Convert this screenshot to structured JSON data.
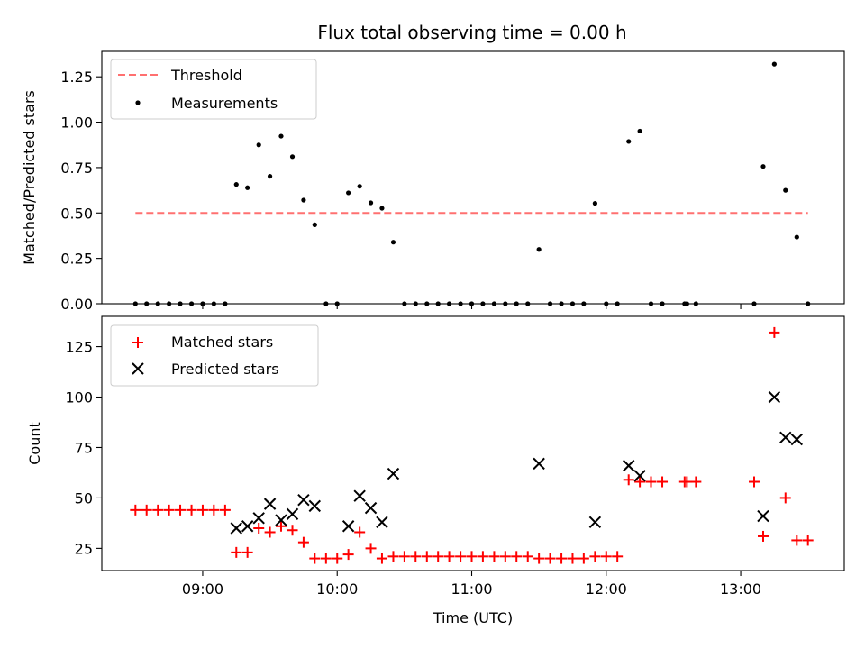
{
  "chart_data": {
    "title": "Flux total observing time = 0.00 h",
    "xlabel": "Time (UTC)",
    "x_ticks": [
      "09:00",
      "10:00",
      "11:00",
      "12:00",
      "13:00"
    ],
    "x_tick_hours": [
      9,
      10,
      11,
      12,
      13
    ],
    "xlim_hours": [
      8.25,
      13.77
    ],
    "top_panel": {
      "type": "scatter",
      "ylabel": "Matched/Predicted stars",
      "ylim": [
        0,
        1.39
      ],
      "y_ticks": [
        0.0,
        0.25,
        0.5,
        0.75,
        1.0,
        1.25
      ],
      "y_tick_labels": [
        "0.00",
        "0.25",
        "0.50",
        "0.75",
        "1.00",
        "1.25"
      ],
      "legend": {
        "placement": "upper-left",
        "entries": [
          "Threshold",
          "Measurements"
        ]
      },
      "threshold": {
        "name": "Threshold",
        "value": 0.5,
        "x_range_hours": [
          8.5,
          13.5
        ],
        "color": "#ff7070"
      },
      "measurements": {
        "name": "Measurements",
        "color": "#000000",
        "points": [
          [
            8.5,
            0
          ],
          [
            8.583,
            0
          ],
          [
            8.667,
            0
          ],
          [
            8.75,
            0
          ],
          [
            8.833,
            0
          ],
          [
            8.917,
            0
          ],
          [
            9.0,
            0
          ],
          [
            9.083,
            0
          ],
          [
            9.167,
            0
          ],
          [
            9.25,
            0.657
          ],
          [
            9.333,
            0.639
          ],
          [
            9.417,
            0.875
          ],
          [
            9.5,
            0.702
          ],
          [
            9.583,
            0.923
          ],
          [
            9.667,
            0.81
          ],
          [
            9.75,
            0.571
          ],
          [
            9.833,
            0.435
          ],
          [
            9.917,
            0
          ],
          [
            10.0,
            0
          ],
          [
            10.083,
            0.611
          ],
          [
            10.167,
            0.647
          ],
          [
            10.25,
            0.556
          ],
          [
            10.333,
            0.526
          ],
          [
            10.417,
            0.339
          ],
          [
            10.5,
            0
          ],
          [
            10.583,
            0
          ],
          [
            10.667,
            0
          ],
          [
            10.75,
            0
          ],
          [
            10.833,
            0
          ],
          [
            10.917,
            0
          ],
          [
            11.0,
            0
          ],
          [
            11.083,
            0
          ],
          [
            11.167,
            0
          ],
          [
            11.25,
            0
          ],
          [
            11.333,
            0
          ],
          [
            11.417,
            0
          ],
          [
            11.5,
            0.299
          ],
          [
            11.583,
            0
          ],
          [
            11.667,
            0
          ],
          [
            11.75,
            0
          ],
          [
            11.833,
            0
          ],
          [
            11.917,
            0.553
          ],
          [
            12.0,
            0
          ],
          [
            12.083,
            0
          ],
          [
            12.167,
            0.894
          ],
          [
            12.25,
            0.951
          ],
          [
            12.333,
            0
          ],
          [
            12.417,
            0
          ],
          [
            12.583,
            0
          ],
          [
            12.6,
            0
          ],
          [
            12.667,
            0
          ],
          [
            13.1,
            0
          ],
          [
            13.167,
            0.756
          ],
          [
            13.25,
            1.32
          ],
          [
            13.333,
            0.625
          ],
          [
            13.417,
            0.367
          ],
          [
            13.5,
            0
          ]
        ]
      }
    },
    "bottom_panel": {
      "type": "scatter",
      "ylabel": "Count",
      "ylim": [
        14,
        140
      ],
      "y_ticks": [
        25,
        50,
        75,
        100,
        125
      ],
      "y_tick_labels": [
        "25",
        "50",
        "75",
        "100",
        "125"
      ],
      "legend": {
        "placement": "upper-left",
        "entries": [
          "Matched stars",
          "Predicted stars"
        ]
      },
      "series": [
        {
          "name": "Matched stars",
          "marker": "plus",
          "color": "#ff0000",
          "points": [
            [
              8.5,
              44
            ],
            [
              8.583,
              44
            ],
            [
              8.667,
              44
            ],
            [
              8.75,
              44
            ],
            [
              8.833,
              44
            ],
            [
              8.917,
              44
            ],
            [
              9.0,
              44
            ],
            [
              9.083,
              44
            ],
            [
              9.167,
              44
            ],
            [
              9.25,
              23
            ],
            [
              9.333,
              23
            ],
            [
              9.417,
              35
            ],
            [
              9.5,
              33
            ],
            [
              9.583,
              36
            ],
            [
              9.667,
              34
            ],
            [
              9.75,
              28
            ],
            [
              9.833,
              20
            ],
            [
              9.917,
              20
            ],
            [
              10.0,
              20
            ],
            [
              10.083,
              22
            ],
            [
              10.167,
              33
            ],
            [
              10.25,
              25
            ],
            [
              10.333,
              20
            ],
            [
              10.417,
              21
            ],
            [
              10.5,
              21
            ],
            [
              10.583,
              21
            ],
            [
              10.667,
              21
            ],
            [
              10.75,
              21
            ],
            [
              10.833,
              21
            ],
            [
              10.917,
              21
            ],
            [
              11.0,
              21
            ],
            [
              11.083,
              21
            ],
            [
              11.167,
              21
            ],
            [
              11.25,
              21
            ],
            [
              11.333,
              21
            ],
            [
              11.417,
              21
            ],
            [
              11.5,
              20
            ],
            [
              11.583,
              20
            ],
            [
              11.667,
              20
            ],
            [
              11.75,
              20
            ],
            [
              11.833,
              20
            ],
            [
              11.917,
              21
            ],
            [
              12.0,
              21
            ],
            [
              12.083,
              21
            ],
            [
              12.167,
              59
            ],
            [
              12.25,
              58
            ],
            [
              12.333,
              58
            ],
            [
              12.417,
              58
            ],
            [
              12.583,
              58
            ],
            [
              12.6,
              58
            ],
            [
              12.667,
              58
            ],
            [
              13.1,
              58
            ],
            [
              13.167,
              31
            ],
            [
              13.25,
              132
            ],
            [
              13.333,
              50
            ],
            [
              13.417,
              29
            ],
            [
              13.5,
              29
            ]
          ]
        },
        {
          "name": "Predicted stars",
          "marker": "x",
          "color": "#000000",
          "points": [
            [
              9.25,
              35
            ],
            [
              9.333,
              36
            ],
            [
              9.417,
              40
            ],
            [
              9.5,
              47
            ],
            [
              9.583,
              39
            ],
            [
              9.667,
              42
            ],
            [
              9.75,
              49
            ],
            [
              9.833,
              46
            ],
            [
              10.083,
              36
            ],
            [
              10.167,
              51
            ],
            [
              10.25,
              45
            ],
            [
              10.333,
              38
            ],
            [
              10.417,
              62
            ],
            [
              11.5,
              67
            ],
            [
              11.917,
              38
            ],
            [
              12.167,
              66
            ],
            [
              12.25,
              61
            ],
            [
              13.167,
              41
            ],
            [
              13.25,
              100
            ],
            [
              13.333,
              80
            ],
            [
              13.417,
              79
            ]
          ]
        }
      ]
    }
  }
}
